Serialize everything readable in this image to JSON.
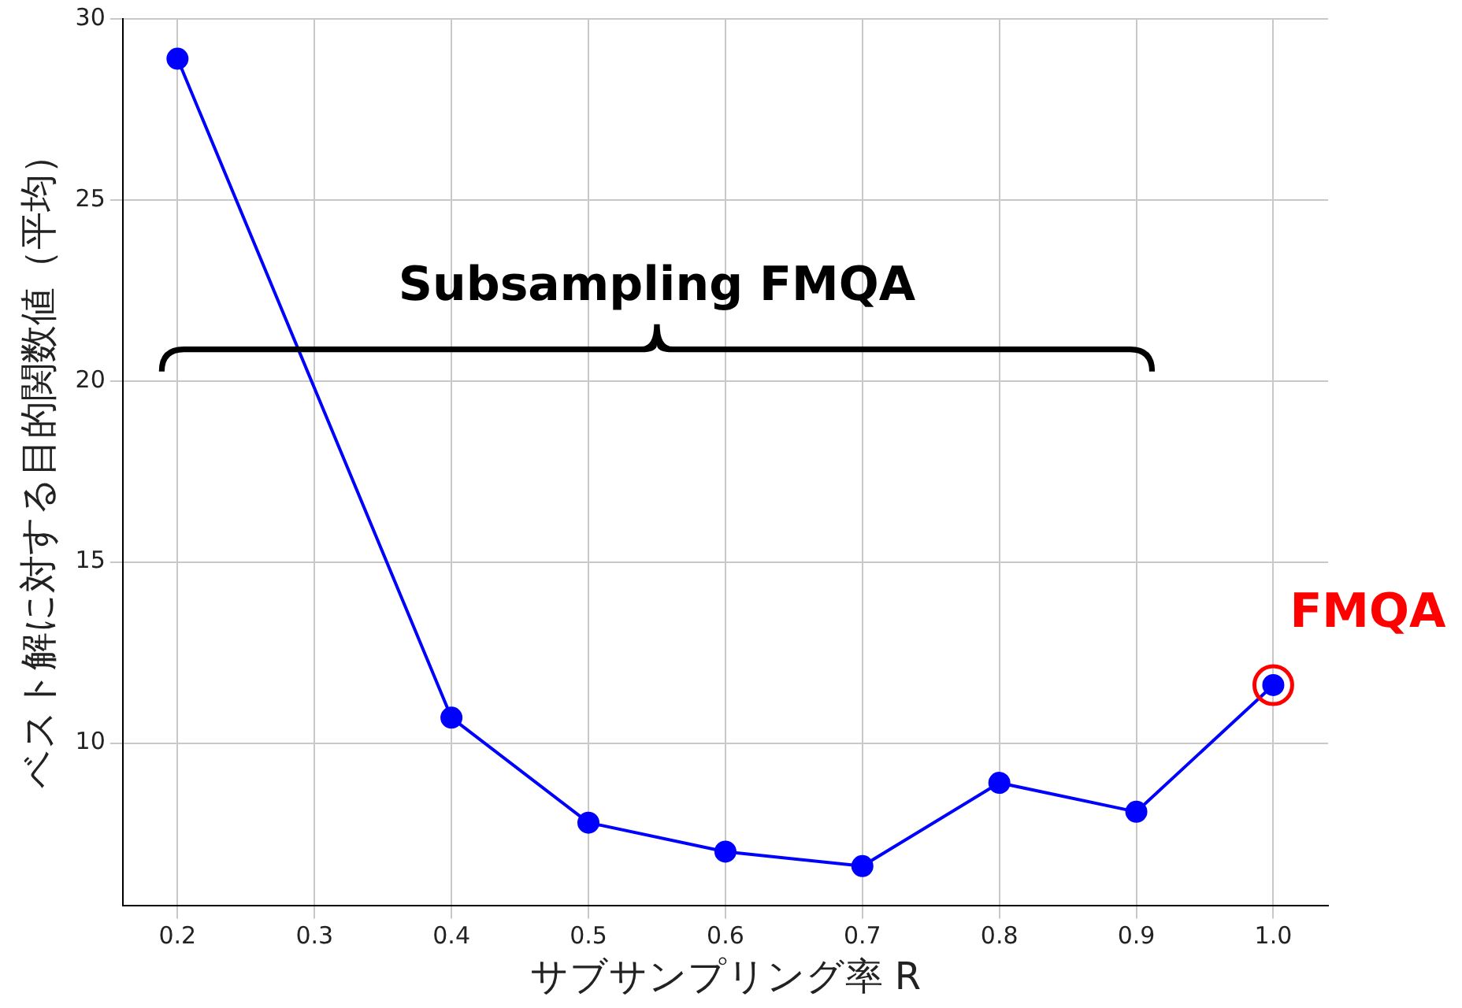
{
  "chart_data": {
    "type": "line",
    "xlabel": "サブサンプリング率 R",
    "ylabel": "ベスト解に対する目的関数値（平均）",
    "x": [
      0.2,
      0.4,
      0.5,
      0.6,
      0.7,
      0.8,
      0.9,
      1.0
    ],
    "series": [
      {
        "color": "#0000ff",
        "values": [
          28.9,
          10.7,
          7.8,
          7.0,
          6.6,
          8.9,
          8.1,
          11.6
        ]
      }
    ],
    "xlim": [
      0.16,
      1.04
    ],
    "xticks": [
      0.2,
      0.3,
      0.4,
      0.5,
      0.6,
      0.7,
      0.8,
      0.9,
      {
        "value": 1.0,
        "label": "1.0"
      }
    ],
    "ylim": [
      5.5,
      30
    ],
    "yticks": [
      10,
      15,
      20,
      25,
      30
    ],
    "grid": true,
    "marker": "circle",
    "legend": false,
    "annotations": [
      "Subsampling FMQA",
      {
        "text": "FMQA",
        "x": 1.0,
        "y": 11.6
      }
    ]
  }
}
